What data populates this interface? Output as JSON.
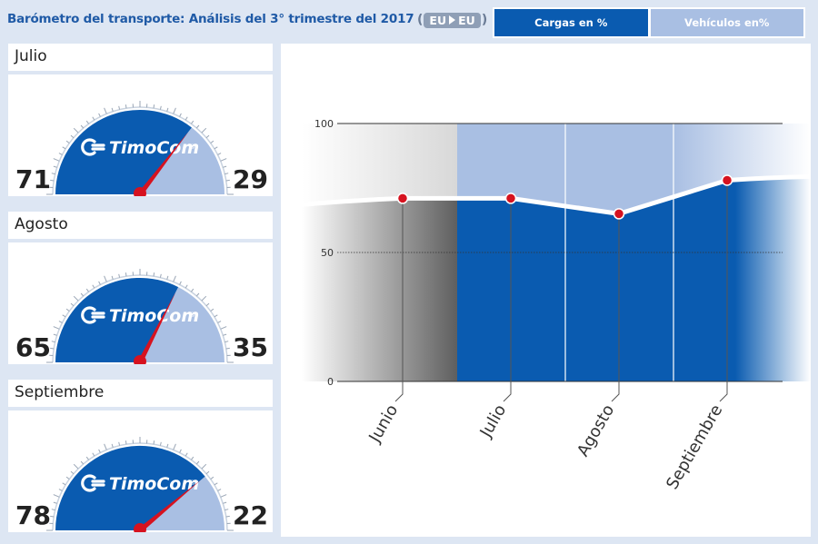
{
  "header": {
    "title": "Barómetro del transporte: Análisis del 3° trimestre del  2017",
    "route_from": "EU",
    "route_to": "EU",
    "paren_open": "(",
    "paren_close": ")"
  },
  "tabs": [
    {
      "label": "Cargas en %",
      "active": true
    },
    {
      "label": "Vehículos en%",
      "active": false
    }
  ],
  "brand": {
    "logo_text": "TimoCom",
    "logo_mark": "®"
  },
  "colors": {
    "cargo": "#0a5bb0",
    "vehicle": "#a9bfe3",
    "needle": "#d6121f",
    "line": "#ffffff",
    "point": "#d6121f"
  },
  "gauges": [
    {
      "month": "Julio",
      "cargo": 71,
      "vehicles": 29
    },
    {
      "month": "Agosto",
      "cargo": 65,
      "vehicles": 35
    },
    {
      "month": "Septiembre",
      "cargo": 78,
      "vehicles": 22
    }
  ],
  "chart_data": {
    "type": "line",
    "categories": [
      "Junio",
      "Julio",
      "Agosto",
      "Septiembre"
    ],
    "series": [
      {
        "values": [
          71,
          71,
          65,
          78
        ]
      }
    ],
    "ylim": [
      0,
      100
    ],
    "yticks": [
      "0",
      "50",
      "100"
    ],
    "title": "",
    "xlabel": "",
    "ylabel": "",
    "grid": true
  }
}
